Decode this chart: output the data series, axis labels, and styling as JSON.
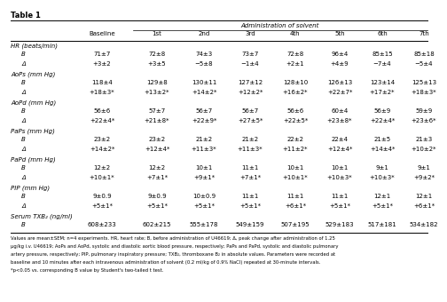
{
  "title": "Table 1",
  "header_top": "Administration of solvent",
  "col_headers": [
    "Baseline",
    "1st",
    "2nd",
    "3rd",
    "4th",
    "5th",
    "6th",
    "7th"
  ],
  "sections": [
    {
      "label": "HR (beats/min)",
      "rows": [
        {
          "name": "B",
          "values": [
            "71±7",
            "72±8",
            "74±3",
            "73±7",
            "72±8",
            "96±4",
            "85±15",
            "85±18"
          ]
        },
        {
          "name": "Δ",
          "values": [
            "+3±2",
            "+3±5",
            "−5±8",
            "−1±4",
            "+2±1",
            "+4±9",
            "−7±4",
            "−5±4"
          ]
        }
      ]
    },
    {
      "label": "AoPs (mm Hg)",
      "rows": [
        {
          "name": "B",
          "values": [
            "118±4",
            "129±8",
            "130±11",
            "127±12",
            "128±10",
            "126±13",
            "123±14",
            "125±13"
          ]
        },
        {
          "name": "Δ",
          "values": [
            "+18±3*",
            "+13±2*",
            "+14±2*",
            "+12±2*",
            "+16±2*",
            "+22±7*",
            "+17±2*",
            "+18±3*"
          ]
        }
      ]
    },
    {
      "label": "AoPd (mm Hg)",
      "rows": [
        {
          "name": "B",
          "values": [
            "56±6",
            "57±7",
            "56±7",
            "56±7",
            "56±6",
            "60±4",
            "56±9",
            "59±9"
          ]
        },
        {
          "name": "Δ",
          "values": [
            "+22±4*",
            "+21±8*",
            "+22±9*",
            "+27±5*",
            "+22±5*",
            "+23±8*",
            "+22±4*",
            "+23±6*"
          ]
        }
      ]
    },
    {
      "label": "PaPs (mm Hg)",
      "rows": [
        {
          "name": "B",
          "values": [
            "23±2",
            "23±2",
            "21±2",
            "21±2",
            "22±2",
            "22±4",
            "21±5",
            "21±3"
          ]
        },
        {
          "name": "Δ",
          "values": [
            "+14±2*",
            "+12±4*",
            "+11±3*",
            "+11±3*",
            "+11±2*",
            "+12±4*",
            "+14±4*",
            "+10±2*"
          ]
        }
      ]
    },
    {
      "label": "PaPd (mm Hg)",
      "rows": [
        {
          "name": "B",
          "values": [
            "12±2",
            "12±2",
            "10±1",
            "11±1",
            "10±1",
            "10±1",
            "9±1",
            "9±1"
          ]
        },
        {
          "name": "Δ",
          "values": [
            "+10±1*",
            "+7±1*",
            "+9±1*",
            "+7±1*",
            "+10±1*",
            "+10±3*",
            "+10±3*",
            "+9±2*"
          ]
        }
      ]
    },
    {
      "label": "PIP (mm Hg)",
      "rows": [
        {
          "name": "B",
          "values": [
            "9±0.9",
            "9±0.9",
            "10±0.9",
            "11±1",
            "11±1",
            "11±1",
            "12±1",
            "12±1"
          ]
        },
        {
          "name": "Δ",
          "values": [
            "+5±1*",
            "+5±1*",
            "+5±1*",
            "+5±1*",
            "+6±1*",
            "+5±1*",
            "+5±1*",
            "+6±1*"
          ]
        }
      ]
    },
    {
      "label": "Serum TXB₂ (ng/ml)",
      "rows": [
        {
          "name": "B",
          "values": [
            "608±233",
            "602±215",
            "555±178",
            "549±159",
            "507±195",
            "529±183",
            "517±181",
            "534±182"
          ]
        }
      ]
    }
  ],
  "footnote_lines": [
    "Values are mean±SEM; n=4 experiments. HR, heart rate; B, before administration of U46619; Δ, peak change after administration of 1.25",
    "µg/kg i.v. U46619; AoPs and AoPd, systolic and diastolic aortic blood pressure, respectively; PaPs and PaPd, systolic and diastolic pulmonary",
    "artery pressure, respectively; PIP, pulmonary inspiratory pressure; TXB₂, thromboxane B₂ in absolute values. Parameters were recorded at",
    "baseline and 10 minutes after each intravenous administration of solvent (0.2 ml/kg of 0.9% NaCl) repeated at 30-minute intervals.",
    "*p<0.05 vs. corresponding B value by Student's two-tailed t test."
  ]
}
